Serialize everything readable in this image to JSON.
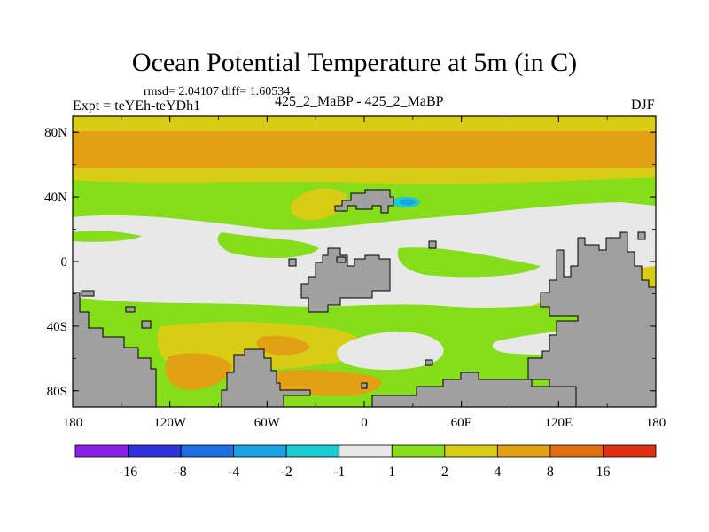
{
  "chart_data": {
    "type": "heatmap",
    "title": "Ocean Potential Temperature at 5m (in C)",
    "stats_text": "rmsd= 2.04107 diff= 1.60534",
    "left_label": "Expt = teYEh-teYDh1",
    "center_label": "425_2_MaBP - 425_2_MaBP",
    "right_label": "DJF",
    "x_ticks": [
      "180",
      "120W",
      "60W",
      "0",
      "60E",
      "120E",
      "180"
    ],
    "y_ticks": [
      "80N",
      "40N",
      "0",
      "40S",
      "80S"
    ],
    "x_range_deg": [
      -180,
      180
    ],
    "y_range_deg": [
      -90,
      90
    ],
    "colorbar": {
      "labels": [
        "-16",
        "-8",
        "-4",
        "-2",
        "-1",
        "1",
        "2",
        "4",
        "8",
        "16"
      ],
      "colors": [
        "#8a1fe6",
        "#2e32d9",
        "#1c6fe0",
        "#1aa3e0",
        "#19ccd2",
        "#e8e8e8",
        "#86dd1a",
        "#d9cc14",
        "#e2a114",
        "#e26e14",
        "#e03014"
      ]
    },
    "land_color": "#a0a0a0",
    "field_bands": [
      {
        "lat_from": 90,
        "lat_to": 62,
        "level": "4 to 8"
      },
      {
        "lat_from": 82,
        "lat_to": 78,
        "level": "2 to 4"
      },
      {
        "lat_from": 62,
        "lat_to": 48,
        "level": "2 to 4"
      },
      {
        "lat_from": 48,
        "lat_to": 20,
        "level": "1 to 2"
      },
      {
        "lat_from": 20,
        "lat_to": -20,
        "level": "-1 to 1"
      },
      {
        "lat_from": -20,
        "lat_to": -35,
        "level": "1 to 2"
      },
      {
        "lat_from": -35,
        "lat_to": -55,
        "level": "-1 to 1"
      },
      {
        "lat_from": -55,
        "lat_to": -90,
        "level": "1 to 2"
      }
    ]
  }
}
